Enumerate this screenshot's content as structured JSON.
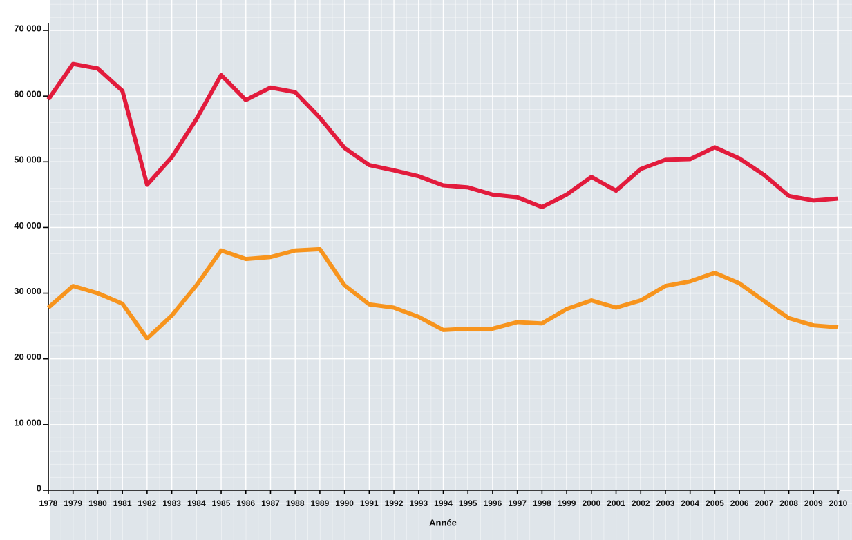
{
  "chart_data": {
    "type": "line",
    "x_label": "Année",
    "categories": [
      "1978",
      "1979",
      "1980",
      "1981",
      "1982",
      "1983",
      "1984",
      "1985",
      "1986",
      "1987",
      "1988",
      "1989",
      "1990",
      "1991",
      "1992",
      "1993",
      "1994",
      "1995",
      "1996",
      "1997",
      "1998",
      "1999",
      "2000",
      "2001",
      "2002",
      "2003",
      "2004",
      "2005",
      "2006",
      "2007",
      "2008",
      "2009",
      "2010"
    ],
    "series": [
      {
        "color": "#e21b3c",
        "values": [
          59500,
          64900,
          64200,
          60800,
          46500,
          50700,
          56500,
          63200,
          59400,
          61300,
          60600,
          56700,
          52100,
          49500,
          48700,
          47800,
          46400,
          46100,
          45000,
          44600,
          43100,
          45000,
          47700,
          45600,
          48900,
          50300,
          50400,
          52200,
          50500,
          48000,
          44800,
          44100,
          44400
        ]
      },
      {
        "color": "#f7941d",
        "values": [
          27800,
          31100,
          30000,
          28400,
          23100,
          26600,
          31200,
          36500,
          35200,
          35500,
          36500,
          36700,
          31200,
          28300,
          27800,
          26400,
          24400,
          24600,
          24600,
          25600,
          25400,
          27600,
          28900,
          27800,
          28900,
          31100,
          31800,
          33100,
          31500,
          28800,
          26200,
          25100,
          24800
        ]
      }
    ],
    "ylim": [
      0,
      70000
    ],
    "yticks": [
      {
        "value": 0,
        "label": "0"
      },
      {
        "value": 10000,
        "label": "10 000"
      },
      {
        "value": 20000,
        "label": "20 000"
      },
      {
        "value": 30000,
        "label": "30 000"
      },
      {
        "value": 40000,
        "label": "40 000"
      },
      {
        "value": 50000,
        "label": "50 000"
      },
      {
        "value": 60000,
        "label": "60 000"
      },
      {
        "value": 70000,
        "label": "70 000"
      }
    ],
    "grid": true
  }
}
